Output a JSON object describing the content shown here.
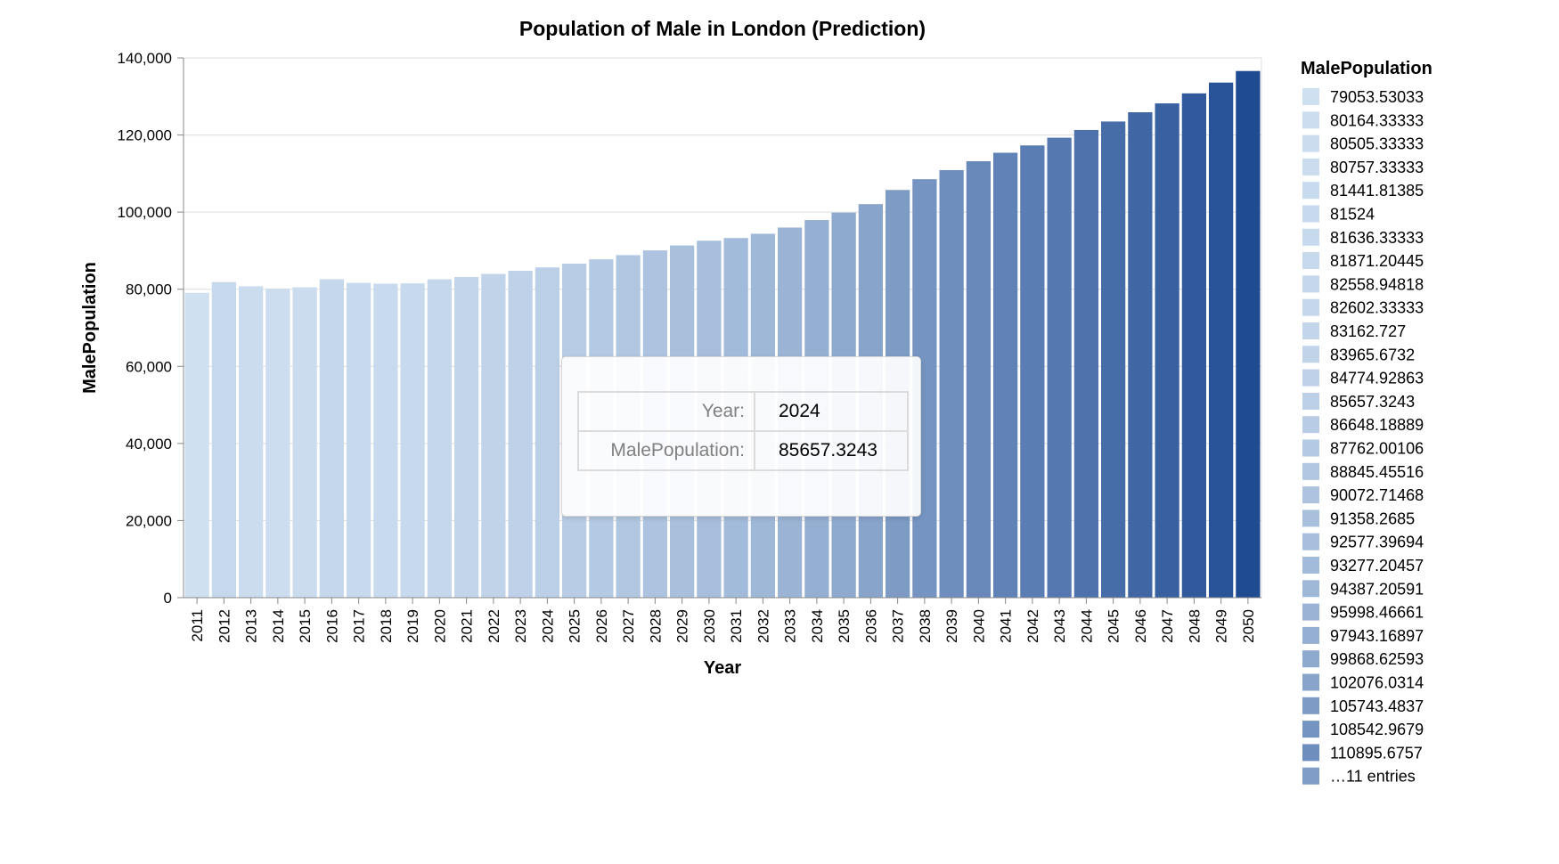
{
  "chart_data": {
    "type": "bar",
    "title": "Population of Male in London (Prediction)",
    "xlabel": "Year",
    "ylabel": "MalePopulation",
    "ylim": [
      0,
      140000
    ],
    "yticks": [
      "0",
      "20,000",
      "40,000",
      "60,000",
      "80,000",
      "100,000",
      "120,000",
      "140,000"
    ],
    "ytick_values": [
      0,
      20000,
      40000,
      60000,
      80000,
      100000,
      120000,
      140000
    ],
    "grid": true,
    "legend_position": "right",
    "categories": [
      "2011",
      "2012",
      "2013",
      "2014",
      "2015",
      "2016",
      "2017",
      "2018",
      "2019",
      "2020",
      "2021",
      "2022",
      "2023",
      "2024",
      "2025",
      "2026",
      "2027",
      "2028",
      "2029",
      "2030",
      "2031",
      "2032",
      "2033",
      "2034",
      "2035",
      "2036",
      "2037",
      "2038",
      "2039",
      "2040",
      "2041",
      "2042",
      "2043",
      "2044",
      "2045",
      "2046",
      "2047",
      "2048",
      "2049",
      "2050"
    ],
    "values": [
      79053.53033,
      81871.20445,
      80757.33333,
      80164.33333,
      80505.33333,
      82602.33333,
      81636.33333,
      81441.81385,
      81524,
      82558.94818,
      83162.727,
      83965.6732,
      84774.92863,
      85657.3243,
      86648.18889,
      87762.00106,
      88845.45516,
      90072.71468,
      91358.2685,
      92577.39694,
      93277.20457,
      94387.20591,
      95998.46661,
      97943.16897,
      99868.62593,
      102076.0314,
      105743.4837,
      108542.9679,
      110895.6757,
      113200,
      115400,
      117300,
      119300,
      121300,
      123500,
      125900,
      128200,
      130800,
      133600,
      136600
    ],
    "color_range": [
      "#cfe0f1",
      "#1f4b93"
    ],
    "legend": {
      "title": "MalePopulation",
      "entries": [
        "79053.53033",
        "80164.33333",
        "80505.33333",
        "80757.33333",
        "81441.81385",
        "81524",
        "81636.33333",
        "81871.20445",
        "82558.94818",
        "82602.33333",
        "83162.727",
        "83965.6732",
        "84774.92863",
        "85657.3243",
        "86648.18889",
        "87762.00106",
        "88845.45516",
        "90072.71468",
        "91358.2685",
        "92577.39694",
        "93277.20457",
        "94387.20591",
        "95998.46661",
        "97943.16897",
        "99868.62593",
        "102076.0314",
        "105743.4837",
        "108542.9679",
        "110895.6757",
        "…11 entries"
      ]
    }
  },
  "tooltip": {
    "year_label": "Year:",
    "year_value": "2024",
    "pop_label": "MalePopulation:",
    "pop_value": "85657.3243"
  }
}
